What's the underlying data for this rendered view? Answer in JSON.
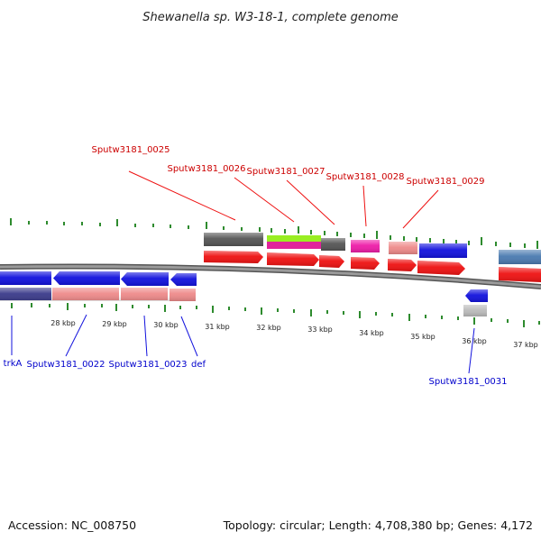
{
  "title": "Shewanella sp. W3-18-1, complete genome",
  "footer": {
    "accession": "Accession: NC_008750",
    "summary": "Topology: circular; Length: 4,708,380 bp; Genes: 4,172"
  },
  "colors": {
    "background": "#ffffff",
    "forward_label": "#cc0000",
    "reverse_label": "#0000cc",
    "tick": "#2e8b2e",
    "backbone": "#7a7a7a"
  },
  "scale": {
    "unit": "kbp",
    "labels": [
      "28 kbp",
      "29 kbp",
      "30 kbp",
      "31 kbp",
      "32 kbp",
      "33 kbp",
      "34 kbp",
      "35 kbp",
      "36 kbp",
      "37 kbp"
    ]
  },
  "labels": {
    "forward": [
      "Sputw3181_0025",
      "Sputw3181_0026",
      "Sputw3181_0027",
      "Sputw3181_0028",
      "Sputw3181_0029"
    ],
    "reverse": [
      "trkA",
      "Sputw3181_0022",
      "Sputw3181_0023",
      "def",
      "Sputw3181_0031"
    ]
  }
}
